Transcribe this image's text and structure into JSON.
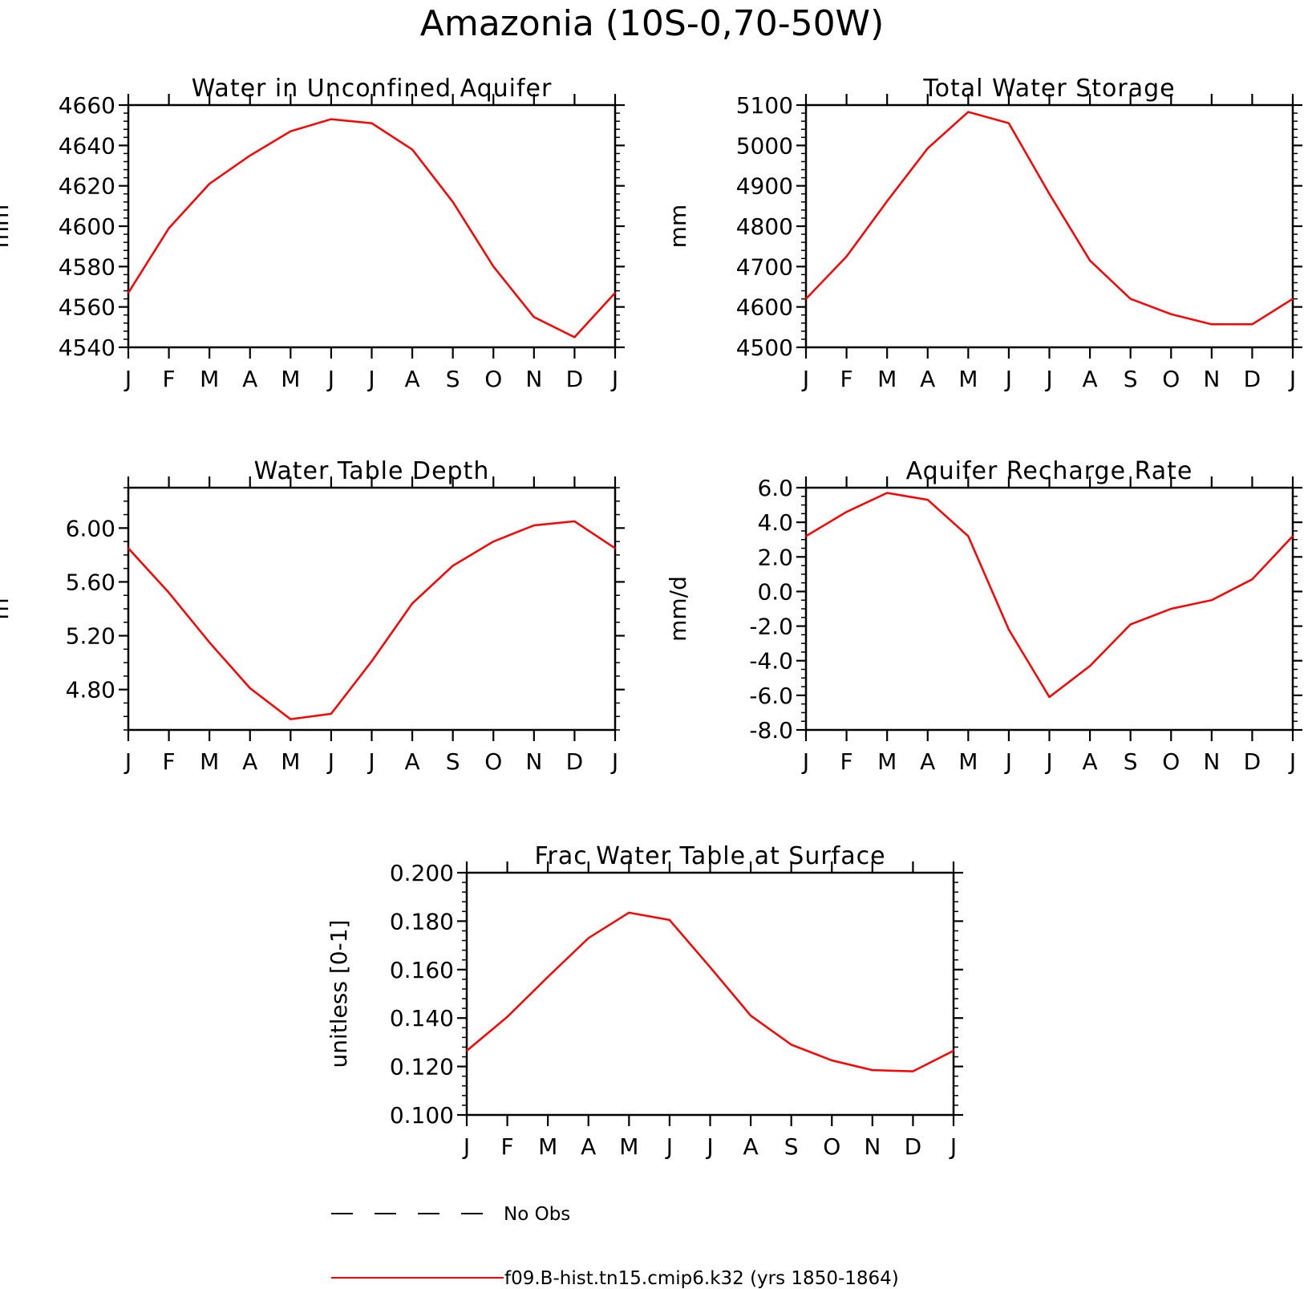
{
  "figure": {
    "suptitle": "Amazonia (10S-0,70-50W)",
    "line_color": "#ff0000"
  },
  "chart_data": [
    {
      "type": "line",
      "title": "Water in Unconfined Aquifer",
      "ylabel": "mm",
      "x": [
        "J",
        "F",
        "M",
        "A",
        "M",
        "J",
        "J",
        "A",
        "S",
        "O",
        "N",
        "D",
        "J"
      ],
      "ylim": [
        4540,
        4660
      ],
      "yticks": [
        4540,
        4560,
        4580,
        4600,
        4620,
        4640,
        4660
      ],
      "ytick_labels": [
        "4540",
        "4560",
        "4580",
        "4600",
        "4620",
        "4640",
        "4660"
      ],
      "minor_step": 4,
      "series": [
        {
          "values": [
            4567,
            4599,
            4621,
            4635,
            4647,
            4653,
            4651,
            4638,
            4612,
            4580,
            4555,
            4545,
            4567
          ]
        }
      ]
    },
    {
      "type": "line",
      "title": "Total Water Storage",
      "ylabel": "mm",
      "x": [
        "J",
        "F",
        "M",
        "A",
        "M",
        "J",
        "J",
        "A",
        "S",
        "O",
        "N",
        "D",
        "J"
      ],
      "ylim": [
        4500,
        5100
      ],
      "yticks": [
        4500,
        4600,
        4700,
        4800,
        4900,
        5000,
        5100
      ],
      "ytick_labels": [
        "4500",
        "4600",
        "4700",
        "4800",
        "4900",
        "5000",
        "5100"
      ],
      "minor_step": 20,
      "series": [
        {
          "values": [
            4620,
            4725,
            4862,
            4993,
            5083,
            5055,
            4880,
            4715,
            4620,
            4582,
            4557,
            4557,
            4620
          ]
        }
      ]
    },
    {
      "type": "line",
      "title": "Water Table Depth",
      "ylabel": "m",
      "x": [
        "J",
        "F",
        "M",
        "A",
        "M",
        "J",
        "J",
        "A",
        "S",
        "O",
        "N",
        "D",
        "J"
      ],
      "ylim": [
        4.5,
        6.3
      ],
      "yticks": [
        4.8,
        5.2,
        5.6,
        6.0
      ],
      "ytick_labels": [
        "4.80",
        "5.20",
        "5.60",
        "6.00"
      ],
      "minor_step": 0.1,
      "series": [
        {
          "values": [
            5.85,
            5.52,
            5.15,
            4.81,
            4.58,
            4.62,
            5.01,
            5.44,
            5.72,
            5.9,
            6.02,
            6.05,
            5.85
          ]
        }
      ]
    },
    {
      "type": "line",
      "title": "Aquifer Recharge Rate",
      "ylabel": "mm/d",
      "x": [
        "J",
        "F",
        "M",
        "A",
        "M",
        "J",
        "J",
        "A",
        "S",
        "O",
        "N",
        "D",
        "J"
      ],
      "ylim": [
        -8.0,
        6.0
      ],
      "yticks": [
        -8.0,
        -6.0,
        -4.0,
        -2.0,
        0.0,
        2.0,
        4.0,
        6.0
      ],
      "ytick_labels": [
        "-8.0",
        "-6.0",
        "-4.0",
        "-2.0",
        "0.0",
        "2.0",
        "4.0",
        "6.0"
      ],
      "minor_step": 0.5,
      "series": [
        {
          "values": [
            3.2,
            4.6,
            5.7,
            5.3,
            3.2,
            -2.2,
            -6.1,
            -4.3,
            -1.9,
            -1.0,
            -0.5,
            0.7,
            3.2
          ]
        }
      ]
    },
    {
      "type": "line",
      "title": "Frac Water Table at Surface",
      "ylabel": "unitless [0-1]",
      "x": [
        "J",
        "F",
        "M",
        "A",
        "M",
        "J",
        "J",
        "A",
        "S",
        "O",
        "N",
        "D",
        "J"
      ],
      "ylim": [
        0.1,
        0.2
      ],
      "yticks": [
        0.1,
        0.12,
        0.14,
        0.16,
        0.18,
        0.2
      ],
      "ytick_labels": [
        "0.100",
        "0.120",
        "0.140",
        "0.160",
        "0.180",
        "0.200"
      ],
      "minor_step": 0.004,
      "series": [
        {
          "values": [
            0.1265,
            0.1405,
            0.157,
            0.173,
            0.1835,
            0.1805,
            0.161,
            0.141,
            0.129,
            0.1225,
            0.1185,
            0.118,
            0.1265
          ]
        }
      ]
    }
  ],
  "legend": [
    {
      "label": "No Obs",
      "style": "dashed",
      "color": "#000000"
    },
    {
      "label": "f09.B-hist.tn15.cmip6.k32 (yrs 1850-1864)",
      "style": "solid",
      "color": "#ff0000"
    }
  ]
}
